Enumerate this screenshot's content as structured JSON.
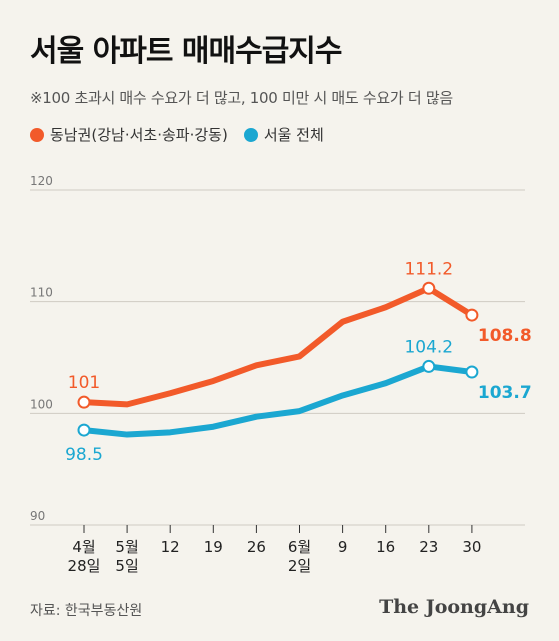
{
  "title": "서울 아파트 매매수급지수",
  "subtitle": "※100 초과시 매수 수요가 더 많고, 100 미만 시 매도 수요가 더 많음",
  "source": "자료: 한국부동산원",
  "brand": "The JoongAng",
  "colors": {
    "orange": "#f25a2a",
    "blue": "#1ba7d1",
    "background": "#f5f3ed"
  },
  "chart_data": {
    "type": "line",
    "categories": [
      [
        "4월",
        "28일"
      ],
      [
        "5월",
        "5일"
      ],
      [
        "12"
      ],
      [
        "19"
      ],
      [
        "26"
      ],
      [
        "6월",
        "2일"
      ],
      [
        "9"
      ],
      [
        "16"
      ],
      [
        "23"
      ],
      [
        "30"
      ]
    ],
    "ylim": [
      90,
      120
    ],
    "yticks": [
      90,
      100,
      110,
      120
    ],
    "grid": true,
    "series": [
      {
        "name": "동남권(강남·서초·송파·강동)",
        "color": "#f25a2a",
        "values": [
          101.0,
          100.8,
          101.8,
          102.9,
          104.3,
          105.1,
          108.2,
          109.5,
          111.2,
          108.8
        ],
        "labels": {
          "0": "101",
          "8": "111.2",
          "9": "108.8"
        }
      },
      {
        "name": "서울 전체",
        "color": "#1ba7d1",
        "values": [
          98.5,
          98.1,
          98.3,
          98.8,
          99.7,
          100.2,
          101.6,
          102.7,
          104.2,
          103.7
        ],
        "labels": {
          "0": "98.5",
          "8": "104.2",
          "9": "103.7"
        }
      }
    ]
  }
}
